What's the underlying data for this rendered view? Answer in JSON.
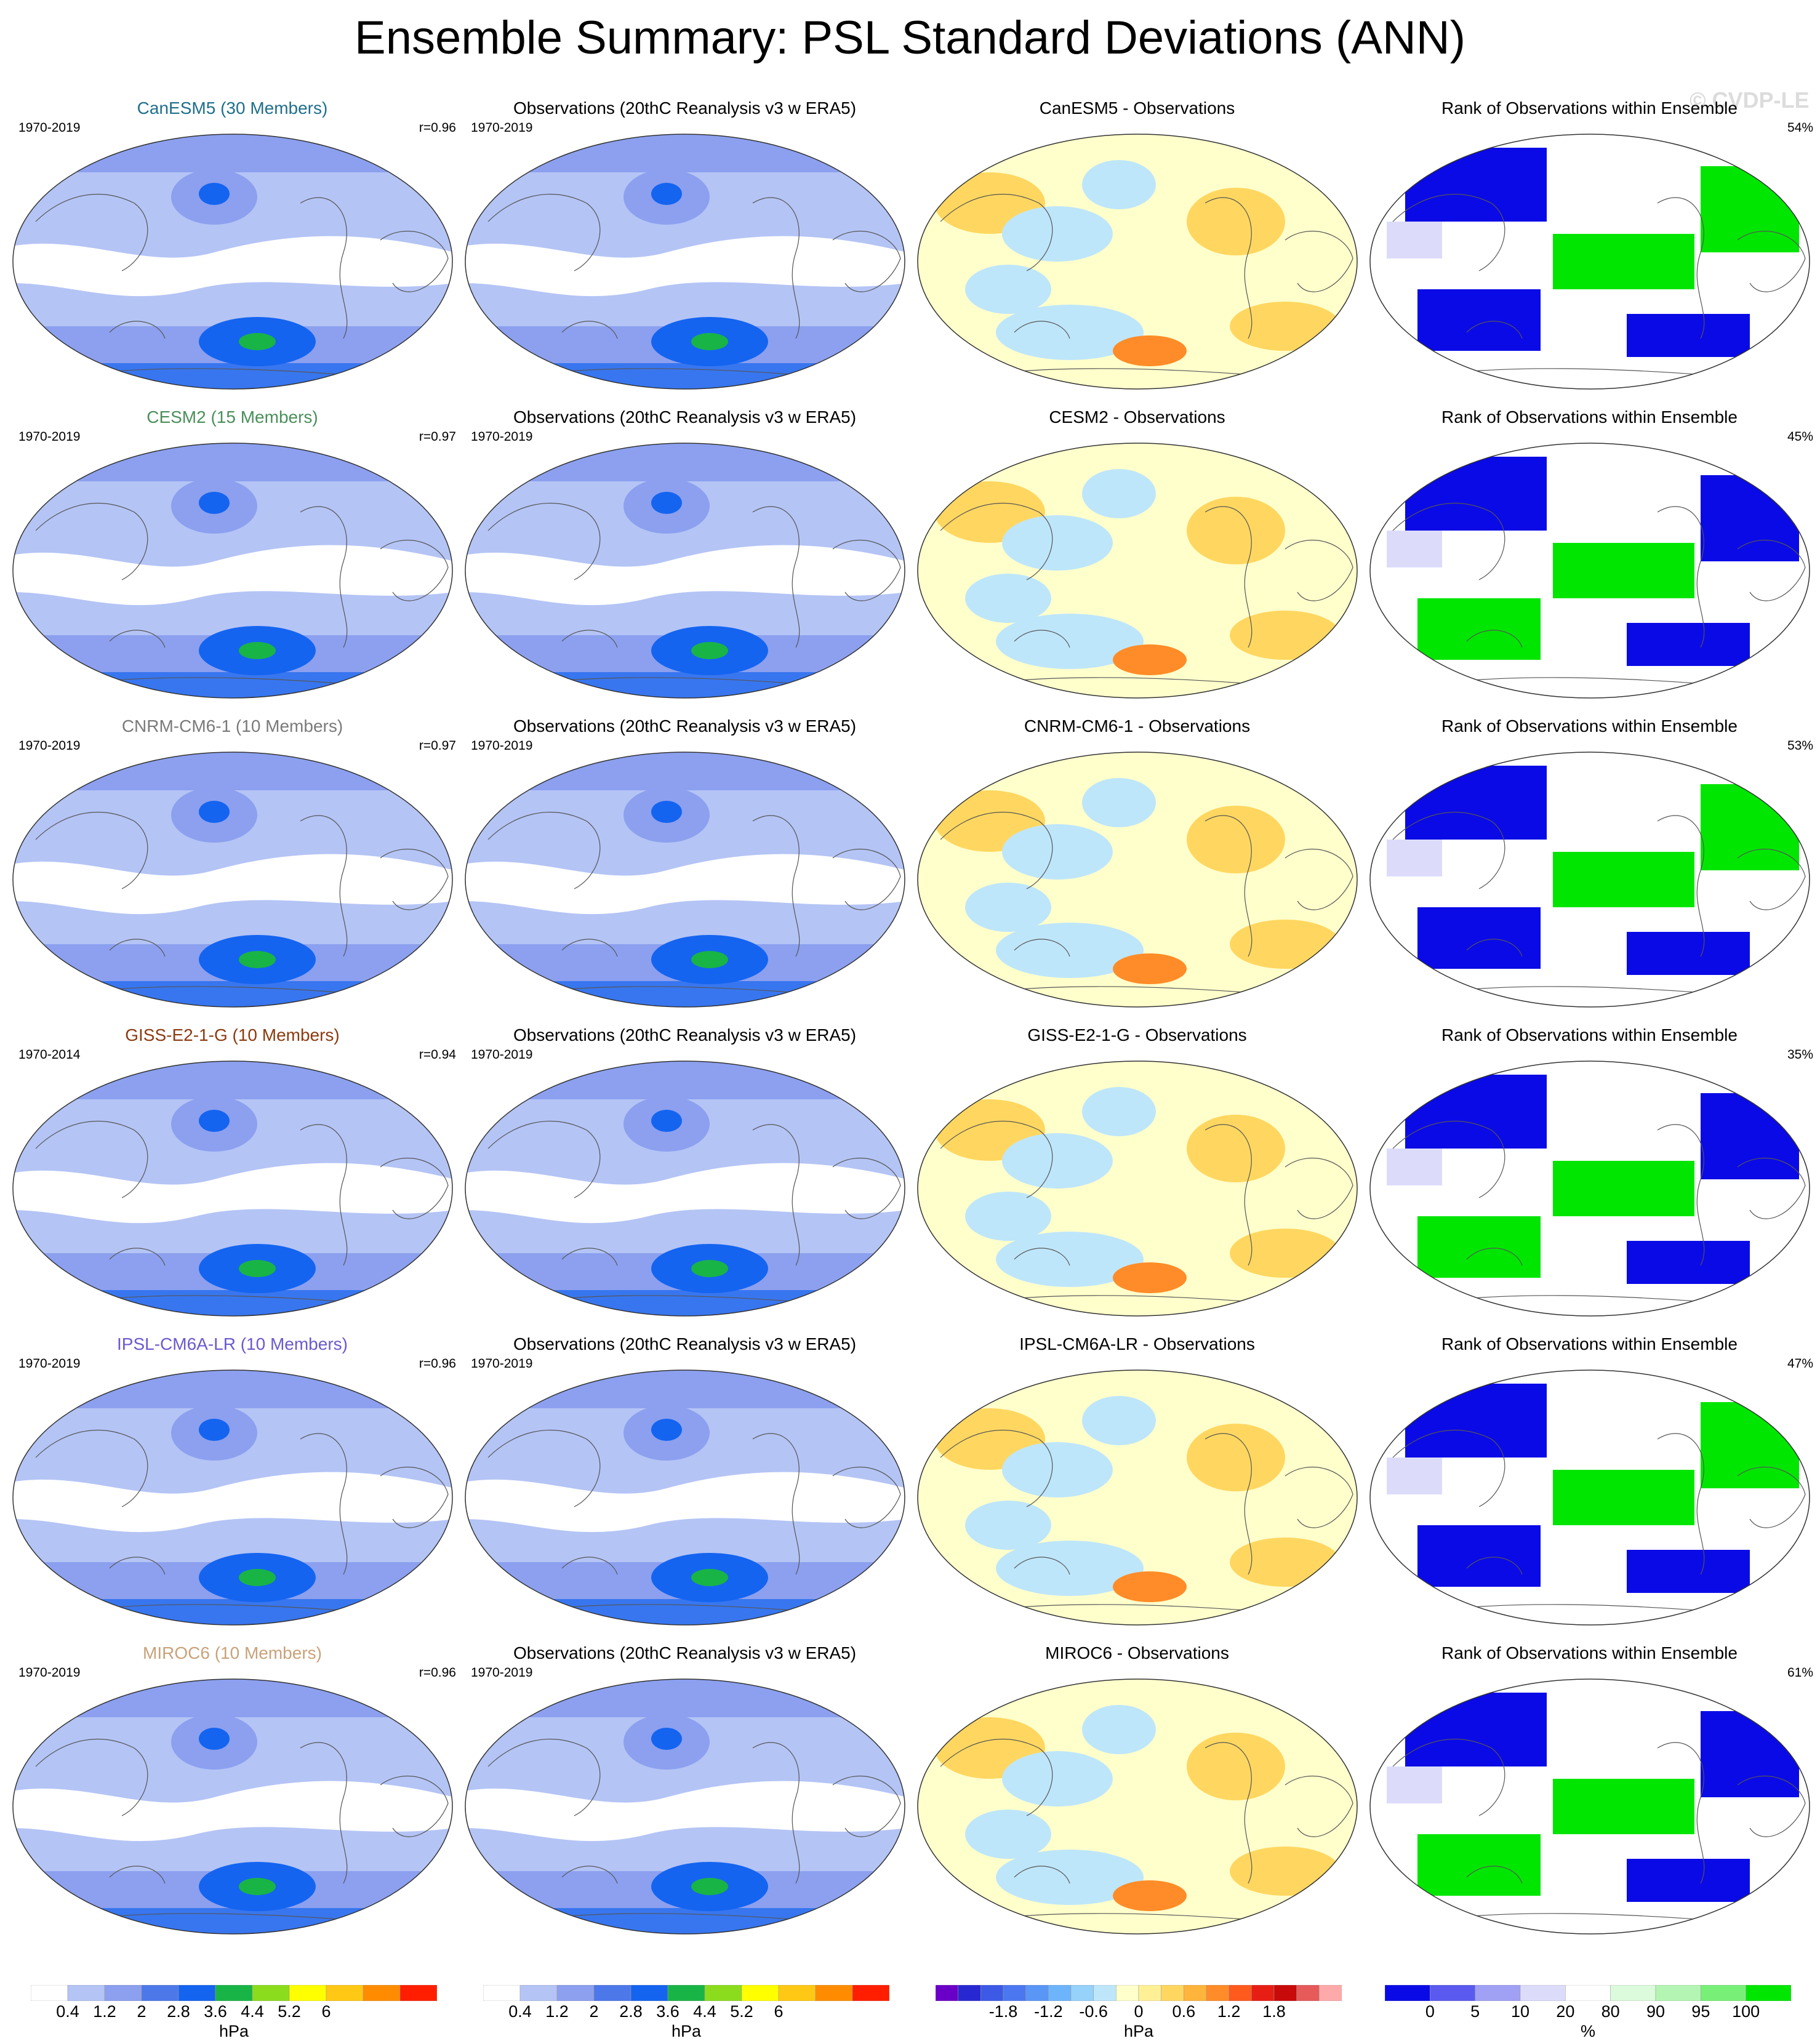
{
  "title": "Ensemble Summary: PSL Standard Deviations (ANN)",
  "watermark": "© CVDP-LE",
  "rows": [
    {
      "model": {
        "label": "CanESM5 (30 Members)",
        "color": "#1f6f8b",
        "period": "1970-2019",
        "r": "r=0.96"
      },
      "obs": {
        "label": "Observations (20thC Reanalysis v3 w ERA5)",
        "period": "1970-2019"
      },
      "diff": {
        "label": "CanESM5 - Observations"
      },
      "rank": {
        "label": "Rank of Observations within Ensemble",
        "pct": "54%"
      }
    },
    {
      "model": {
        "label": "CESM2 (15 Members)",
        "color": "#4a8f5a",
        "period": "1970-2019",
        "r": "r=0.97"
      },
      "obs": {
        "label": "Observations (20thC Reanalysis v3 w ERA5)",
        "period": "1970-2019"
      },
      "diff": {
        "label": "CESM2 - Observations"
      },
      "rank": {
        "label": "Rank of Observations within Ensemble",
        "pct": "45%"
      }
    },
    {
      "model": {
        "label": "CNRM-CM6-1 (10 Members)",
        "color": "#7a7a7a",
        "period": "1970-2019",
        "r": "r=0.97"
      },
      "obs": {
        "label": "Observations (20thC Reanalysis v3 w ERA5)",
        "period": "1970-2019"
      },
      "diff": {
        "label": "CNRM-CM6-1 - Observations"
      },
      "rank": {
        "label": "Rank of Observations within Ensemble",
        "pct": "53%"
      }
    },
    {
      "model": {
        "label": "GISS-E2-1-G (10 Members)",
        "color": "#8b3a0f",
        "period": "1970-2014",
        "r": "r=0.94"
      },
      "obs": {
        "label": "Observations (20thC Reanalysis v3 w ERA5)",
        "period": "1970-2019"
      },
      "diff": {
        "label": "GISS-E2-1-G - Observations"
      },
      "rank": {
        "label": "Rank of Observations within Ensemble",
        "pct": "35%"
      }
    },
    {
      "model": {
        "label": "IPSL-CM6A-LR (10 Members)",
        "color": "#6a5acd",
        "period": "1970-2019",
        "r": "r=0.96"
      },
      "obs": {
        "label": "Observations (20thC Reanalysis v3 w ERA5)",
        "period": "1970-2019"
      },
      "diff": {
        "label": "IPSL-CM6A-LR - Observations"
      },
      "rank": {
        "label": "Rank of Observations within Ensemble",
        "pct": "47%"
      }
    },
    {
      "model": {
        "label": "MIROC6 (10 Members)",
        "color": "#c8a27a",
        "period": "1970-2019",
        "r": "r=0.96"
      },
      "obs": {
        "label": "Observations (20thC Reanalysis v3 w ERA5)",
        "period": "1970-2019"
      },
      "diff": {
        "label": "MIROC6 - Observations"
      },
      "rank": {
        "label": "Rank of Observations within Ensemble",
        "pct": "61%"
      }
    }
  ],
  "colorbars": {
    "std": {
      "colors": [
        "#ffffff",
        "#b4c4f5",
        "#8ca0ef",
        "#4d78ea",
        "#1464f0",
        "#19b446",
        "#8cdc1e",
        "#ffff00",
        "#ffc814",
        "#ff8c00",
        "#ff1e00"
      ],
      "ticks": [
        "0.4",
        "1.2",
        "2",
        "2.8",
        "3.6",
        "4.4",
        "5.2",
        "6"
      ],
      "unit": "hPa"
    },
    "diff": {
      "colors": [
        "#6a00c8",
        "#2828d2",
        "#3c5ae6",
        "#4b78f0",
        "#5a96f5",
        "#6eb4fa",
        "#96d2fa",
        "#bee6fa",
        "#ffffcc",
        "#fff096",
        "#ffd760",
        "#ffb43c",
        "#ff8c28",
        "#ff5a1e",
        "#e61e14",
        "#c80a0a",
        "#e65a5a",
        "#ffaaaa"
      ],
      "ticks": [
        "-1.8",
        "-1.2",
        "-0.6",
        "0",
        "0.6",
        "1.2",
        "1.8"
      ],
      "unit": "hPa"
    },
    "rank": {
      "colors": [
        "#0a0ae6",
        "#5a5af0",
        "#a0a0f5",
        "#dcdcfa",
        "#ffffff",
        "#dcfadc",
        "#b4f5b4",
        "#78f078",
        "#00e600"
      ],
      "ticks": [
        "0",
        "5",
        "10",
        "20",
        "80",
        "90",
        "95",
        "100"
      ],
      "unit": "%"
    }
  }
}
